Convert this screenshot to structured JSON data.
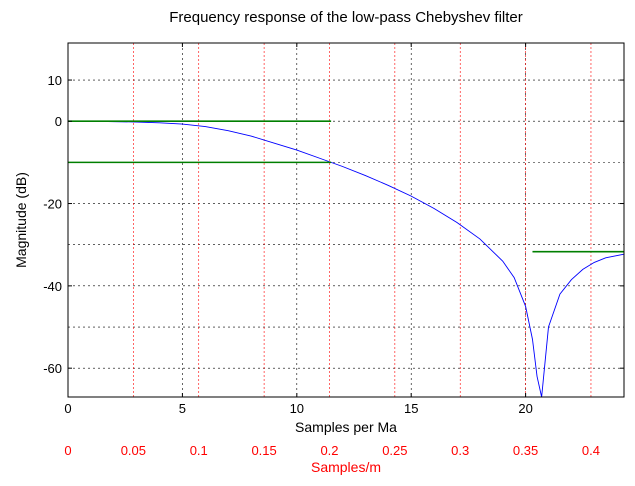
{
  "chart_data": {
    "type": "line",
    "title": "Frequency response of the low-pass Chebyshev filter",
    "xlabel": "Samples per Ma",
    "ylabel": "Magnitude (dB)",
    "x2label": "Samples/m",
    "xlim": [
      0,
      24.3
    ],
    "ylim": [
      -67,
      19
    ],
    "x_ticks": [
      "0",
      "5",
      "10",
      "15",
      "20"
    ],
    "x_tick_values": [
      0,
      5,
      10,
      15,
      20
    ],
    "y_ticks": [
      "10",
      "0",
      "-20",
      "-40",
      "-60"
    ],
    "y_tick_values": [
      10,
      0,
      -20,
      -40,
      -60
    ],
    "y_minor_grid": [
      -10,
      -30,
      -50
    ],
    "x2_ticks": [
      "0",
      "0.05",
      "0.1",
      "0.15",
      "0.2",
      "0.25",
      "0.3",
      "0.35",
      "0.4"
    ],
    "x2_tick_values": [
      0,
      0.05,
      0.1,
      0.15,
      0.2,
      0.25,
      0.3,
      0.35,
      0.4
    ],
    "x2_scale": 57.14,
    "grid": true,
    "colors": {
      "response": "#0000ff",
      "spec": "#007f00",
      "grid_major": "#000000",
      "grid_secondary": "#ff0000"
    },
    "series": [
      {
        "color": "#0000ff",
        "x": [
          0,
          1,
          2,
          3,
          4,
          5,
          6,
          7,
          8,
          9,
          10,
          11,
          11.5,
          12,
          13,
          14,
          15,
          16,
          17,
          18,
          19,
          19.5,
          20,
          20.3,
          20.5,
          20.7,
          21,
          21.5,
          22,
          22.5,
          23,
          23.5,
          24.3
        ],
        "y": [
          0,
          0,
          -0.1,
          -0.2,
          -0.4,
          -0.7,
          -1.3,
          -2.3,
          -3.6,
          -5.3,
          -7,
          -9,
          -10,
          -11,
          -13.2,
          -15.6,
          -18.2,
          -21.2,
          -24.6,
          -28.6,
          -34,
          -38,
          -45,
          -53,
          -62,
          -67,
          -50,
          -42,
          -38.5,
          -36,
          -34.3,
          -33.2,
          -32.3
        ]
      },
      {
        "color": "#007f00",
        "segments": [
          {
            "x": [
              0,
              11.5
            ],
            "y": [
              0,
              0
            ]
          },
          {
            "x": [
              0,
              11.5
            ],
            "y": [
              -10,
              -10
            ]
          },
          {
            "x": [
              20.3,
              24.3
            ],
            "y": [
              -31.7,
              -31.7
            ]
          }
        ]
      }
    ]
  }
}
